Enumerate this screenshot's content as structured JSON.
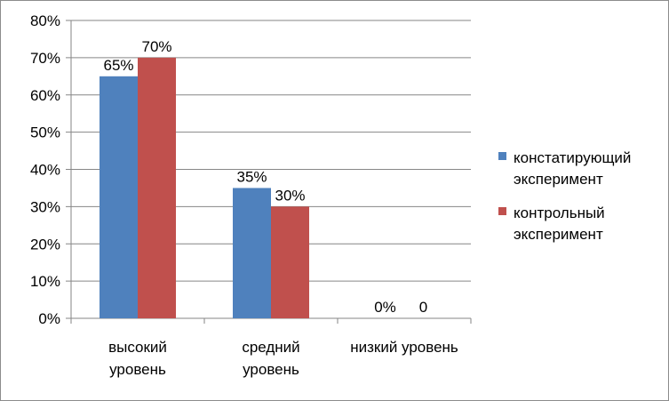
{
  "chart_data": {
    "type": "bar",
    "categories": [
      [
        "высокий",
        "уровень"
      ],
      [
        "средний",
        "уровень"
      ],
      [
        "низкий уровень"
      ]
    ],
    "series": [
      {
        "name": [
          "констатирующий",
          "эксперимент"
        ],
        "values": [
          65,
          35,
          0
        ],
        "labels": [
          "65%",
          "35%",
          "0%"
        ],
        "color": "#4f81bd"
      },
      {
        "name": [
          "контрольный",
          "эксперимент"
        ],
        "values": [
          70,
          30,
          0
        ],
        "labels": [
          "70%",
          "30%",
          "0"
        ],
        "color": "#c0504d"
      }
    ],
    "yticks": [
      "0%",
      "10%",
      "20%",
      "30%",
      "40%",
      "50%",
      "60%",
      "70%",
      "80%"
    ],
    "ylim": [
      0,
      80
    ],
    "grid": true,
    "legend": "right",
    "gridColor": "#868686",
    "axisColor": "#868686"
  }
}
